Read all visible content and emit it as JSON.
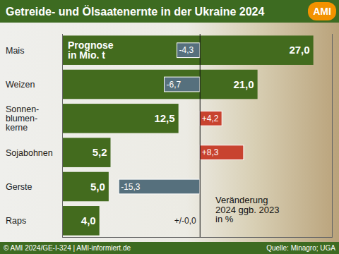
{
  "chart_data": [
    {
      "type": "bar",
      "orientation": "horizontal",
      "title": "Getreide- und Ölsaatenernte in der Ukraine 2024",
      "subtitle": "Prognose\nin Mio. t",
      "categories": [
        "Mais",
        "Weizen",
        "Sonnen-\nblumen-\nkerne",
        "Sojabohnen",
        "Gerste",
        "Raps"
      ],
      "values": [
        27.0,
        21.0,
        12.5,
        5.2,
        5.0,
        4.0
      ],
      "value_labels": [
        "27,0",
        "21,0",
        "12,5",
        "5,2",
        "5,0",
        "4,0"
      ],
      "data_labels": true,
      "color": "#436b1e",
      "xlim": [
        0,
        29
      ],
      "xticks": [
        0
      ],
      "tick_labels": "y",
      "annotations": [
        "AMI",
        "© AMI 2024/GE-I-324 | AMI-informiert.de",
        "Quelle: Minagro; UGA"
      ]
    },
    {
      "type": "bar",
      "orientation": "horizontal",
      "title": "Veränderung\n2024 ggb. 2023\nin %",
      "categories": [
        null,
        null,
        null,
        null,
        null,
        null
      ],
      "values": [
        -4.3,
        -6.7,
        4.2,
        8.3,
        -15.3,
        0.0
      ],
      "value_labels": [
        "-4,3",
        "-6,7",
        "+4,2",
        "+8,3",
        "-15,3",
        "+/-0,0"
      ],
      "data_labels": true,
      "colors": [
        "#56707d",
        "#56707d",
        "#c8432f",
        "#c8432f",
        "#56707d",
        "#56707d"
      ],
      "xlim": [
        -26,
        25
      ],
      "xticks": [
        0
      ],
      "tick_labels": false
    }
  ]
}
